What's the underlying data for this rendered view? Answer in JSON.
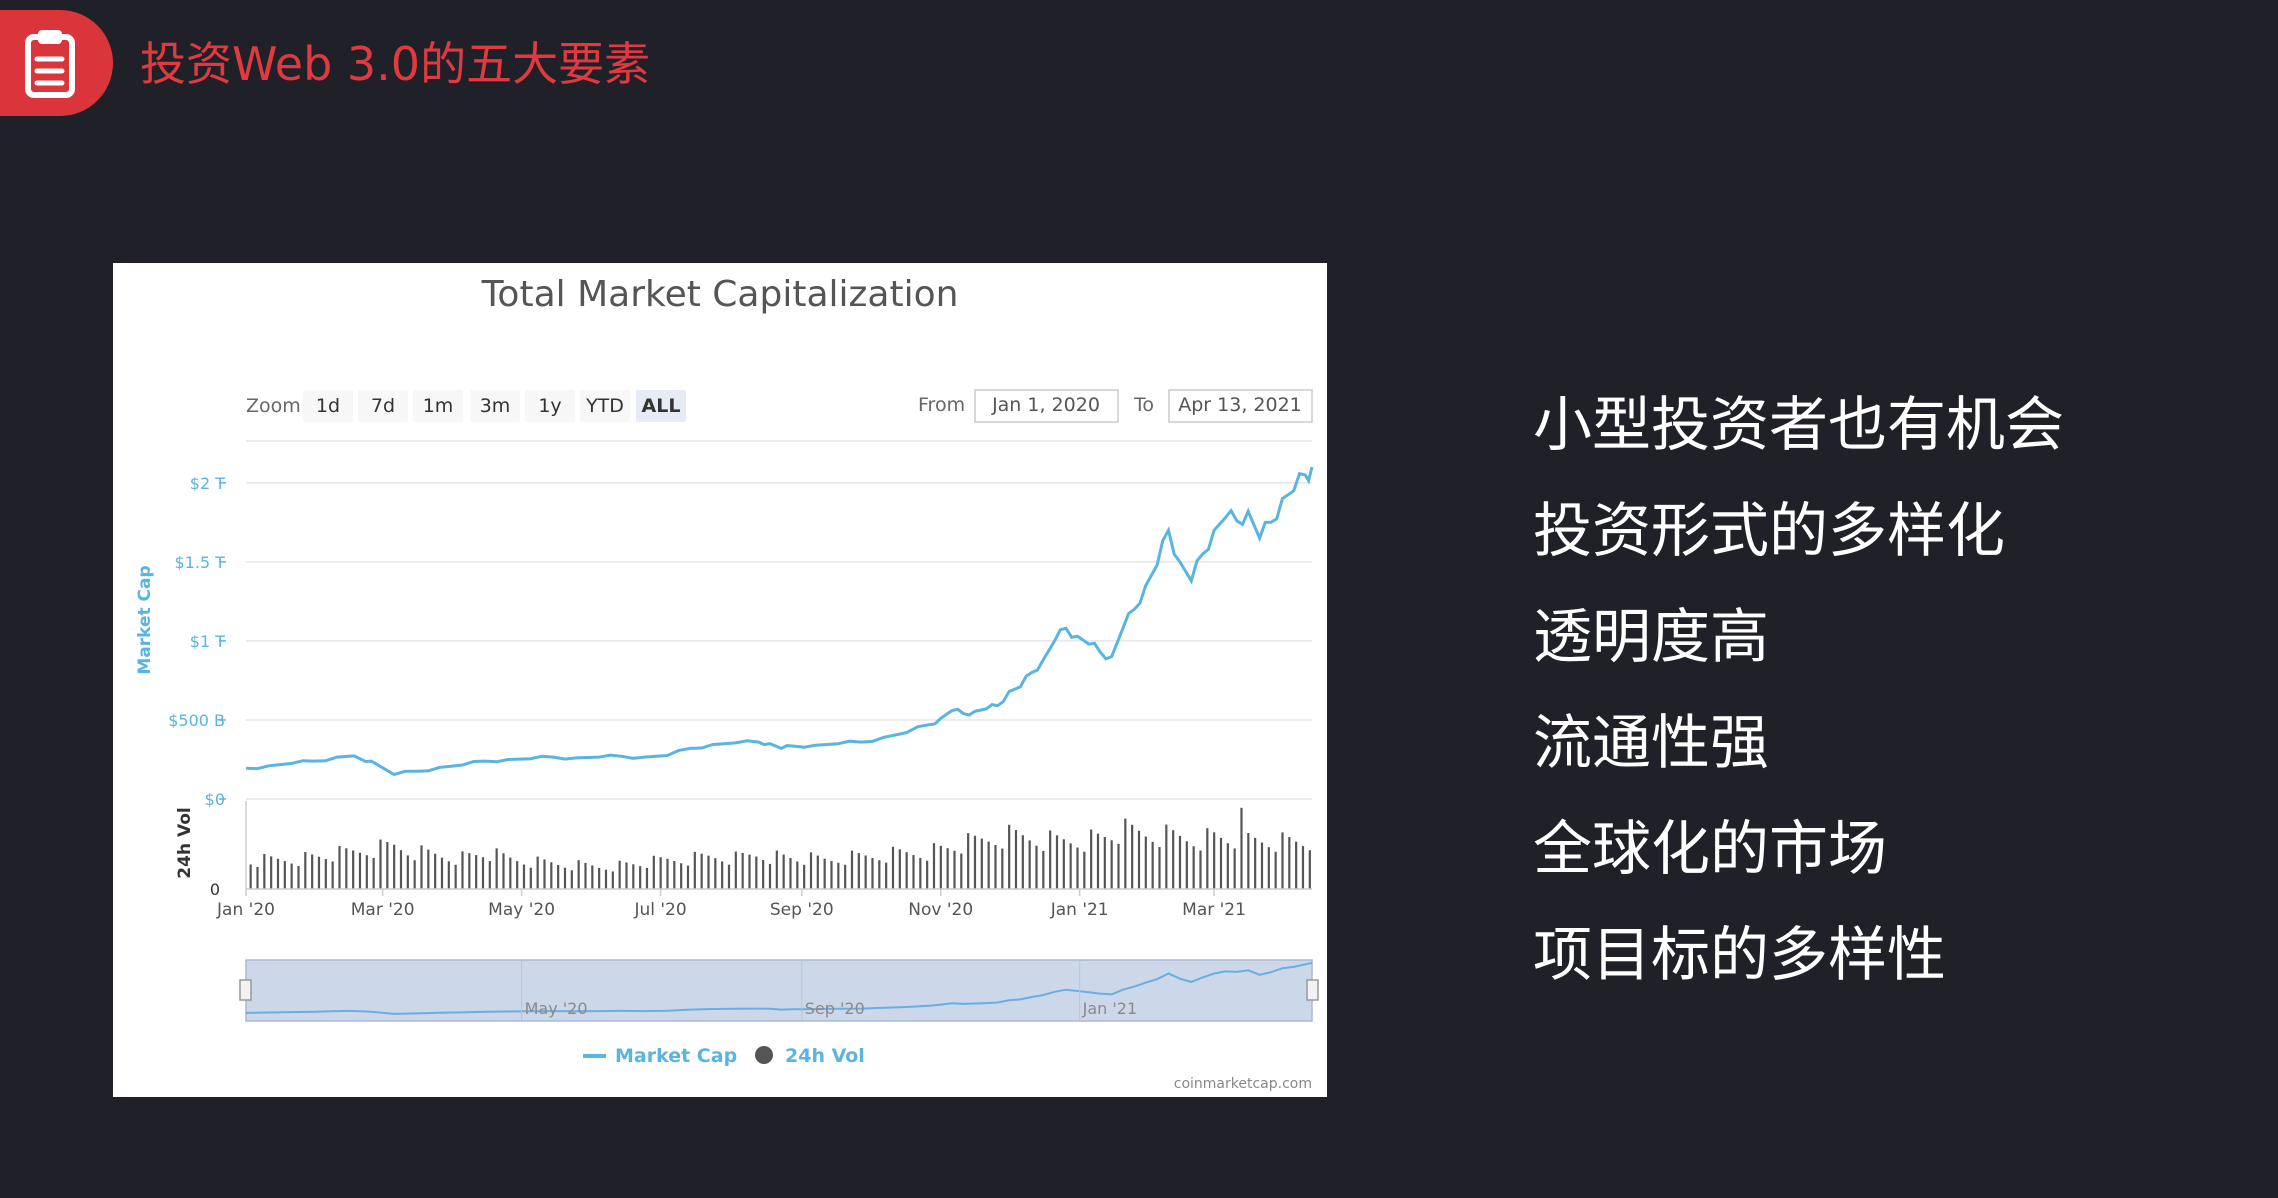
{
  "header": {
    "title": "投资Web 3.0的五大要素",
    "icon": "clipboard-icon",
    "accent_color": "#d9353b"
  },
  "points": [
    "小型投资者也有机会",
    "投资形式的多样化",
    "透明度高",
    "流通性强",
    "全球化的市场",
    "项目标的多样性"
  ],
  "chart_ui": {
    "zoom_label": "Zoom",
    "zoom_buttons": [
      "1d",
      "7d",
      "1m",
      "3m",
      "1y",
      "YTD",
      "ALL"
    ],
    "active_zoom": "ALL",
    "from_label": "From",
    "from_value": "Jan 1, 2020",
    "to_label": "To",
    "to_value": "Apr 13, 2021",
    "navigator_labels": [
      "May '20",
      "Sep '20",
      "Jan '21"
    ],
    "credit": "coinmarketcap.com"
  },
  "chart_data": {
    "type": "line",
    "title": "Total Market Capitalization",
    "ylabel": "Market Cap",
    "y_ticks": [
      "$0",
      "$500 B",
      "$1 T",
      "$1.5 T",
      "$2 T"
    ],
    "ylim": [
      0,
      2100
    ],
    "x_ticks": [
      "Jan '20",
      "Mar '20",
      "May '20",
      "Jul '20",
      "Sep '20",
      "Nov '20",
      "Jan '21",
      "Mar '21"
    ],
    "grid": true,
    "legend": {
      "placement": "bottom",
      "entries": [
        "Market Cap",
        "24h Vol"
      ]
    },
    "series": [
      {
        "name": "Market Cap",
        "color": "#5ab4e0",
        "points": [
          [
            0,
            195
          ],
          [
            10,
            210
          ],
          [
            20,
            225
          ],
          [
            30,
            240
          ],
          [
            40,
            265
          ],
          [
            45,
            270
          ],
          [
            50,
            255
          ],
          [
            55,
            240
          ],
          [
            65,
            155
          ],
          [
            75,
            175
          ],
          [
            85,
            200
          ],
          [
            95,
            215
          ],
          [
            105,
            240
          ],
          [
            115,
            250
          ],
          [
            125,
            255
          ],
          [
            135,
            265
          ],
          [
            145,
            260
          ],
          [
            155,
            265
          ],
          [
            165,
            270
          ],
          [
            175,
            265
          ],
          [
            185,
            275
          ],
          [
            195,
            320
          ],
          [
            205,
            345
          ],
          [
            215,
            355
          ],
          [
            225,
            360
          ],
          [
            230,
            350
          ],
          [
            235,
            320
          ],
          [
            240,
            335
          ],
          [
            250,
            340
          ],
          [
            260,
            350
          ],
          [
            270,
            360
          ],
          [
            280,
            390
          ],
          [
            290,
            420
          ],
          [
            300,
            470
          ],
          [
            305,
            510
          ],
          [
            310,
            560
          ],
          [
            315,
            540
          ],
          [
            320,
            555
          ],
          [
            325,
            570
          ],
          [
            330,
            590
          ],
          [
            335,
            680
          ],
          [
            340,
            710
          ],
          [
            345,
            800
          ],
          [
            350,
            880
          ],
          [
            355,
            1000
          ],
          [
            360,
            1080
          ],
          [
            365,
            1030
          ],
          [
            370,
            980
          ],
          [
            375,
            930
          ],
          [
            380,
            900
          ],
          [
            385,
            1080
          ],
          [
            390,
            1200
          ],
          [
            395,
            1350
          ],
          [
            400,
            1480
          ],
          [
            405,
            1700
          ],
          [
            410,
            1500
          ],
          [
            415,
            1380
          ],
          [
            420,
            1550
          ],
          [
            425,
            1700
          ],
          [
            430,
            1780
          ],
          [
            435,
            1760
          ],
          [
            440,
            1820
          ],
          [
            445,
            1650
          ],
          [
            450,
            1750
          ],
          [
            455,
            1900
          ],
          [
            460,
            1950
          ],
          [
            465,
            2050
          ],
          [
            468,
            2100
          ]
        ]
      },
      {
        "name": "24h Vol",
        "color": "#444444",
        "points": [
          [
            0,
            40
          ],
          [
            15,
            42
          ],
          [
            30,
            45
          ],
          [
            45,
            50
          ],
          [
            55,
            55
          ],
          [
            65,
            60
          ],
          [
            75,
            52
          ],
          [
            85,
            48
          ],
          [
            95,
            45
          ],
          [
            105,
            50
          ],
          [
            115,
            42
          ],
          [
            125,
            38
          ],
          [
            135,
            36
          ],
          [
            145,
            34
          ],
          [
            155,
            32
          ],
          [
            165,
            34
          ],
          [
            175,
            36
          ],
          [
            185,
            40
          ],
          [
            195,
            42
          ],
          [
            205,
            46
          ],
          [
            215,
            44
          ],
          [
            225,
            50
          ],
          [
            235,
            45
          ],
          [
            245,
            42
          ],
          [
            255,
            40
          ],
          [
            265,
            44
          ],
          [
            275,
            46
          ],
          [
            285,
            50
          ],
          [
            295,
            52
          ],
          [
            305,
            56
          ],
          [
            315,
            62
          ],
          [
            325,
            68
          ],
          [
            335,
            74
          ],
          [
            345,
            72
          ],
          [
            355,
            68
          ],
          [
            365,
            70
          ],
          [
            375,
            72
          ],
          [
            385,
            80
          ],
          [
            395,
            76
          ],
          [
            405,
            74
          ],
          [
            415,
            70
          ],
          [
            425,
            72
          ],
          [
            435,
            68
          ],
          [
            445,
            66
          ],
          [
            455,
            64
          ],
          [
            465,
            62
          ],
          [
            468,
            62
          ]
        ]
      }
    ]
  }
}
